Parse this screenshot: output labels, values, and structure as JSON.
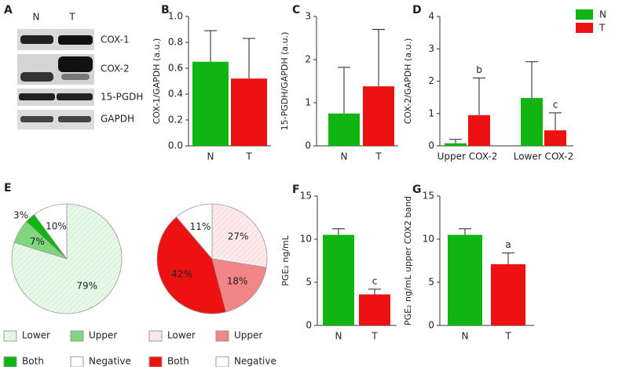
{
  "blot": {
    "panel": "A",
    "lanes": [
      "N",
      "T"
    ],
    "bands": [
      "COX-1",
      "COX-2",
      "15-PGDH",
      "GAPDH"
    ]
  },
  "chart_data": [
    {
      "type": "bar",
      "panel": "B",
      "ylabel": "COX-1/GAPDH (a.u.)",
      "categories": [
        "N",
        "T"
      ],
      "series": [
        {
          "color": [
            "#11b511",
            "#ee1111"
          ],
          "values": [
            0.65,
            0.52
          ],
          "errors": [
            0.24,
            0.31
          ]
        }
      ],
      "ylim": [
        0,
        1
      ],
      "yticks": [
        {
          "value": 0,
          "label": "0.0"
        },
        0.2,
        0.4,
        0.6,
        0.8,
        {
          "value": 1,
          "label": "1.0"
        }
      ]
    },
    {
      "type": "bar",
      "panel": "C",
      "ylabel": "15-PGDH/GAPDH (a.u.)",
      "categories": [
        "N",
        "T"
      ],
      "series": [
        {
          "color": [
            "#11b511",
            "#ee1111"
          ],
          "values": [
            0.75,
            1.38
          ],
          "errors": [
            1.07,
            1.32
          ]
        }
      ],
      "ylim": [
        0,
        3
      ],
      "yticks": [
        0,
        1,
        2,
        3
      ]
    },
    {
      "type": "bar",
      "panel": "D",
      "ylabel": "COX-2/GAPDH (a.u.)",
      "categories": [
        "Upper COX-2",
        "Lower COX-2"
      ],
      "series": [
        {
          "name": "N",
          "color": "#11b511",
          "values": [
            0.08,
            1.48
          ],
          "errors": [
            0.12,
            1.12
          ]
        },
        {
          "name": "T",
          "color": "#ee1111",
          "values": [
            0.95,
            0.48
          ],
          "errors": [
            1.15,
            0.54
          ],
          "annotations": [
            "b",
            "c"
          ]
        }
      ],
      "ylim": [
        0,
        4
      ],
      "yticks": [
        0,
        1,
        2,
        3,
        4
      ],
      "legend": "top-right"
    },
    {
      "type": "pie",
      "panel": "E",
      "categories": [
        "Lower",
        "Upper",
        "Both",
        "Negative"
      ],
      "values": [
        79,
        7,
        3,
        10
      ],
      "value_labels": [
        "79%",
        "7%",
        "3%",
        "10%"
      ],
      "colors": [
        "#dff5df",
        "#7fd67f",
        "#11b511",
        "#ffffff"
      ],
      "hatch": [
        true,
        false,
        false,
        false
      ],
      "legend": "bottom"
    },
    {
      "type": "pie",
      "categories": [
        "Lower",
        "Upper",
        "Both",
        "Negative"
      ],
      "values": [
        27,
        18,
        42,
        11
      ],
      "value_labels": [
        "27%",
        "18%",
        "42%",
        "11%"
      ],
      "colors": [
        "#fbe3e3",
        "#f28585",
        "#ee1111",
        "#ffffff"
      ],
      "hatch": [
        true,
        false,
        false,
        false
      ],
      "legend": "bottom"
    },
    {
      "type": "bar",
      "panel": "F",
      "ylabel": "PGE₂ ng/mL",
      "categories": [
        "N",
        "T"
      ],
      "series": [
        {
          "color": [
            "#11b511",
            "#ee1111"
          ],
          "values": [
            10.5,
            3.6
          ],
          "errors": [
            0.7,
            0.6
          ],
          "annotations": [
            null,
            "c"
          ]
        }
      ],
      "ylim": [
        0,
        15
      ],
      "yticks": [
        0,
        5,
        10,
        15
      ]
    },
    {
      "type": "bar",
      "panel": "G",
      "ylabel": "PGE₂ ng/mL upper COX2 band",
      "categories": [
        "N",
        "T"
      ],
      "series": [
        {
          "color": [
            "#11b511",
            "#ee1111"
          ],
          "values": [
            10.5,
            7.1
          ],
          "errors": [
            0.7,
            1.3
          ],
          "annotations": [
            null,
            "a"
          ]
        }
      ],
      "ylim": [
        0,
        15
      ],
      "yticks": [
        0,
        5,
        10,
        15
      ]
    }
  ]
}
